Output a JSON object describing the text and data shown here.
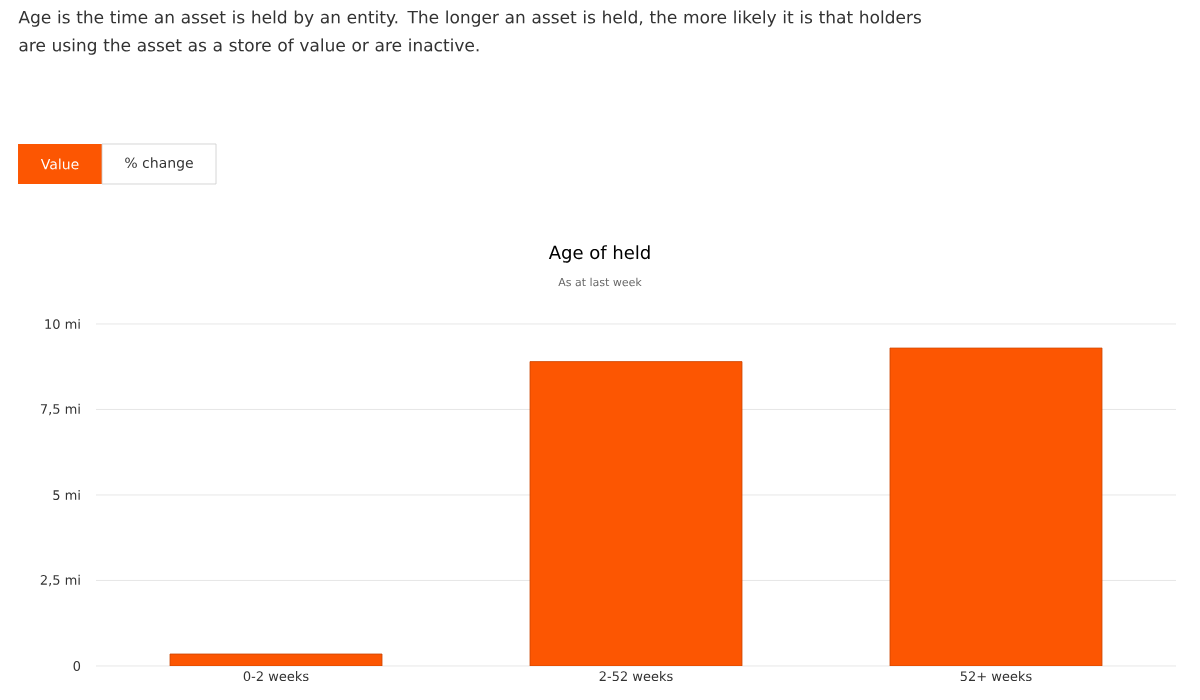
{
  "chart_data": {
    "type": "bar",
    "title": "Age of held",
    "subtitle": "As at last week",
    "annotations": [
      "Age is the time an asset is held by an entity. The longer an asset is held, the more likely it is that holders are using the asset as a store of value or are inactive.",
      "Value",
      "% change"
    ],
    "categories": [
      "0-2 weeks",
      "2-52 weeks",
      "52+ weeks"
    ],
    "values": [
      0.35,
      8.9,
      9.3
    ],
    "color": "#fc5602",
    "ylim": [
      0,
      10
    ],
    "yticks": [
      {
        "value": 0,
        "label": "0"
      },
      {
        "value": 2.5,
        "label": "2,5 mi"
      },
      {
        "value": 5,
        "label": "5 mi"
      },
      {
        "value": 7.5,
        "label": "7,5 mi"
      },
      {
        "value": 10,
        "label": "10 mi"
      }
    ],
    "grid": "y"
  }
}
